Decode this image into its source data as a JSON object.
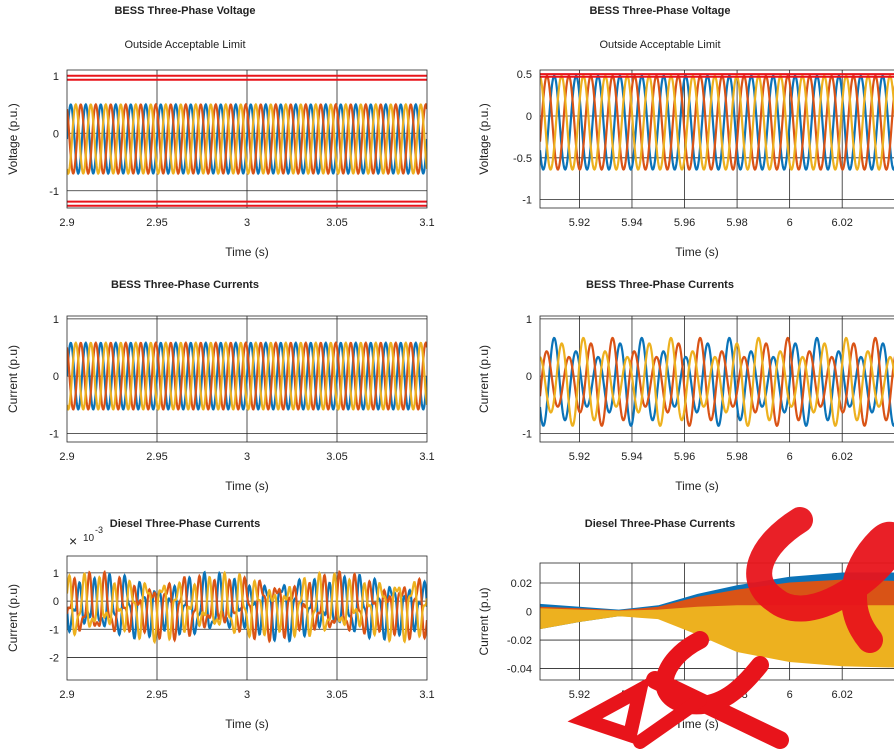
{
  "chart_data": [
    {
      "type": "line",
      "title": "BESS Three-Phase Voltage",
      "subtitle": "Outside Acceptable Limit",
      "xlabel": "Time (s)",
      "ylabel": "Voltage (p.u.)",
      "xlim": [
        2.9,
        3.1
      ],
      "ylim": [
        -1.3,
        1.1
      ],
      "xticks": [
        2.9,
        2.95,
        3.0,
        3.05,
        3.1
      ],
      "xticklabels": [
        "2.9",
        "2.95",
        "3",
        "3.05",
        "3.1"
      ],
      "yticks": [
        -1,
        0,
        1
      ],
      "yticklabels": [
        "-1",
        "0",
        "1"
      ],
      "grid": true,
      "limit_lines": {
        "color": "#e8141b",
        "values": [
          0.93,
          1.0,
          -1.19,
          -1.26
        ]
      },
      "waveform": {
        "kind": "three-phase",
        "amplitude": 0.6,
        "offset": -0.1,
        "frequency_hz": 120
      },
      "series": [
        {
          "color": "#0b73b8"
        },
        {
          "color": "#d95316"
        },
        {
          "color": "#edb11f"
        }
      ]
    },
    {
      "type": "line",
      "title": "BESS Three-Phase Voltage",
      "subtitle": "Outside Acceptable Limit",
      "xlabel": "Time (s)",
      "ylabel": "Voltage (p.u.)",
      "xlim": [
        5.905,
        6.042
      ],
      "ylim": [
        -1.1,
        0.55
      ],
      "xticks": [
        5.92,
        5.94,
        5.96,
        5.98,
        6.0,
        6.02
      ],
      "xticklabels": [
        "5.92",
        "5.94",
        "5.96",
        "5.98",
        "6",
        "6.02"
      ],
      "yticks": [
        -1,
        -0.5,
        0,
        0.5
      ],
      "yticklabels": [
        "-1",
        "-0.5",
        "0",
        "0.5"
      ],
      "grid": true,
      "limit_lines": {
        "color": "#e8141b",
        "values": [
          0.5,
          0.47
        ]
      },
      "waveform": {
        "kind": "three-phase",
        "amplitude": 0.56,
        "offset": -0.08,
        "frequency_hz": 120
      },
      "series": [
        {
          "color": "#0b73b8"
        },
        {
          "color": "#d95316"
        },
        {
          "color": "#edb11f"
        }
      ]
    },
    {
      "type": "line",
      "title": "BESS Three-Phase Currents",
      "xlabel": "Time (s)",
      "ylabel": "Current (p.u)",
      "xlim": [
        2.9,
        3.1
      ],
      "ylim": [
        -1.15,
        1.05
      ],
      "xticks": [
        2.9,
        2.95,
        3.0,
        3.05,
        3.1
      ],
      "xticklabels": [
        "2.9",
        "2.95",
        "3",
        "3.05",
        "3.1"
      ],
      "yticks": [
        -1,
        0,
        1
      ],
      "yticklabels": [
        "-1",
        "0",
        "1"
      ],
      "grid": true,
      "waveform": {
        "kind": "three-phase",
        "amplitude": 0.58,
        "offset": 0.0,
        "frequency_hz": 120
      },
      "series": [
        {
          "color": "#0b73b8"
        },
        {
          "color": "#d95316"
        },
        {
          "color": "#edb11f"
        }
      ]
    },
    {
      "type": "line",
      "title": "BESS Three-Phase Currents",
      "xlabel": "Time (s)",
      "ylabel": "Current (p.u)",
      "xlim": [
        5.905,
        6.042
      ],
      "ylim": [
        -1.15,
        1.05
      ],
      "xticks": [
        5.92,
        5.94,
        5.96,
        5.98,
        6.0,
        6.02
      ],
      "xticklabels": [
        "5.92",
        "5.94",
        "5.96",
        "5.98",
        "6",
        "6.02"
      ],
      "yticks": [
        -1,
        0,
        1
      ],
      "yticklabels": [
        "-1",
        "0",
        "1"
      ],
      "grid": true,
      "waveform": {
        "kind": "three-phase-modulated",
        "amplitude": 0.6,
        "offset": -0.1,
        "frequency_hz": 120,
        "modulation_hz": 30,
        "modulation_depth": 0.3
      },
      "series": [
        {
          "color": "#0b73b8"
        },
        {
          "color": "#d95316"
        },
        {
          "color": "#edb11f"
        }
      ]
    },
    {
      "type": "line",
      "title": "Diesel Three-Phase Currents",
      "xlabel": "Time (s)",
      "ylabel": "Current (p.u)",
      "y_exponent_label": "10",
      "y_exponent_power": "-3",
      "xlim": [
        2.9,
        3.1
      ],
      "ylim": [
        -2.8,
        1.6
      ],
      "xticks": [
        2.9,
        2.95,
        3.0,
        3.05,
        3.1
      ],
      "xticklabels": [
        "2.9",
        "2.95",
        "3",
        "3.05",
        "3.1"
      ],
      "yticks": [
        -2,
        -1,
        0,
        1
      ],
      "yticklabels": [
        "-2",
        "-1",
        "0",
        "1"
      ],
      "grid": true,
      "waveform": {
        "kind": "beating",
        "amplitude": 0.9,
        "offset": -0.2,
        "frequency_hz": 115
      },
      "series": [
        {
          "color": "#0b73b8"
        },
        {
          "color": "#d95316"
        },
        {
          "color": "#edb11f"
        }
      ]
    },
    {
      "type": "area",
      "title": "Diesel Three-Phase Currents",
      "xlabel": "Time (s)",
      "ylabel": "Current (p.u)",
      "xlim": [
        5.905,
        6.042
      ],
      "ylim": [
        -0.048,
        0.034
      ],
      "xticks": [
        5.92,
        5.94,
        5.96,
        5.98,
        6.0,
        6.02
      ],
      "xticklabels": [
        "5.92",
        "5.94",
        "5.96",
        "5.98",
        "6",
        "6.02"
      ],
      "yticks": [
        -0.04,
        -0.02,
        0,
        0.02
      ],
      "yticklabels": [
        "-0.04",
        "-0.02",
        "0",
        "0.02"
      ],
      "grid": true,
      "envelope_times": [
        5.905,
        5.92,
        5.935,
        5.95,
        5.965,
        5.98,
        6.0,
        6.02,
        6.042
      ],
      "series": [
        {
          "color": "#0b73b8",
          "upper": [
            0.005,
            0.003,
            0.001,
            0.004,
            0.012,
            0.018,
            0.024,
            0.027,
            0.027
          ],
          "lower": [
            -0.012,
            -0.007,
            -0.003,
            -0.004,
            -0.012,
            -0.022,
            -0.03,
            -0.034,
            -0.036
          ]
        },
        {
          "color": "#d95316",
          "upper": [
            0.003,
            0.002,
            0.0005,
            0.003,
            0.01,
            0.015,
            0.02,
            0.022,
            0.021
          ],
          "lower": [
            -0.011,
            -0.006,
            -0.002,
            -0.004,
            -0.013,
            -0.024,
            -0.032,
            -0.036,
            -0.038
          ]
        },
        {
          "color": "#edb11f",
          "upper": [
            0.002,
            0.001,
            0.0003,
            0.001,
            0.003,
            0.004,
            0.004,
            0.004,
            0.004
          ],
          "lower": [
            -0.012,
            -0.007,
            -0.003,
            -0.005,
            -0.016,
            -0.028,
            -0.035,
            -0.038,
            -0.039
          ]
        }
      ]
    }
  ]
}
